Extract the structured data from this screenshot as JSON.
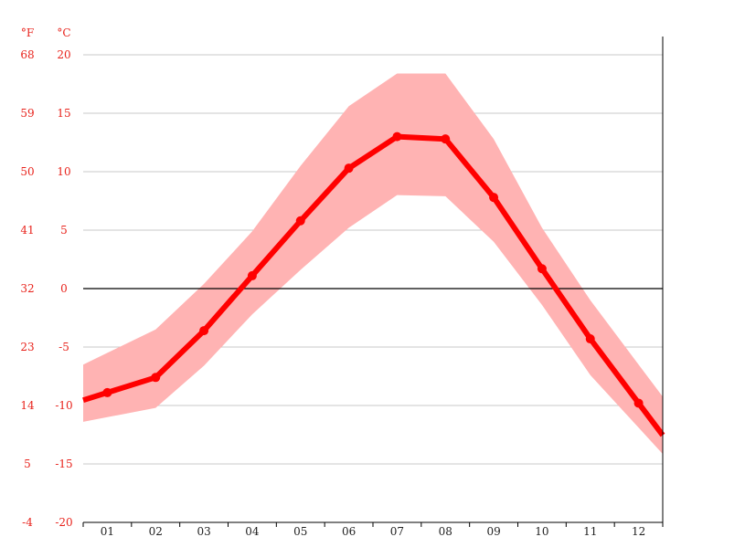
{
  "chart_data": {
    "type": "line",
    "title": "",
    "units": {
      "fahrenheit": "°F",
      "celsius": "°C"
    },
    "categories": [
      "01",
      "02",
      "03",
      "04",
      "05",
      "06",
      "07",
      "08",
      "09",
      "10",
      "11",
      "12"
    ],
    "series": [
      {
        "values": [
          -8.9,
          -7.6,
          -3.6,
          1.1,
          5.8,
          10.3,
          13.0,
          12.8,
          7.8,
          1.7,
          -4.3,
          -9.8
        ],
        "color": "#ff0000"
      }
    ],
    "range_band": {
      "low": [
        -11.0,
        -10.2,
        -6.6,
        -2.2,
        1.6,
        5.2,
        8.0,
        7.9,
        4.0,
        -1.4,
        -7.4,
        -11.9
      ],
      "high": [
        -5.5,
        -3.5,
        0.4,
        4.9,
        10.5,
        15.6,
        18.4,
        18.4,
        12.8,
        5.2,
        -1.0,
        -6.5
      ],
      "color": "#ffb3b3"
    },
    "y_celsius": {
      "ylim": [
        -20,
        20
      ],
      "ticks": [
        20,
        15,
        10,
        5,
        0,
        -5,
        -10,
        -15,
        -20
      ]
    },
    "y_fahrenheit_ticks": [
      68,
      59,
      50,
      41,
      32,
      23,
      14,
      5,
      -4
    ],
    "grid": true
  }
}
